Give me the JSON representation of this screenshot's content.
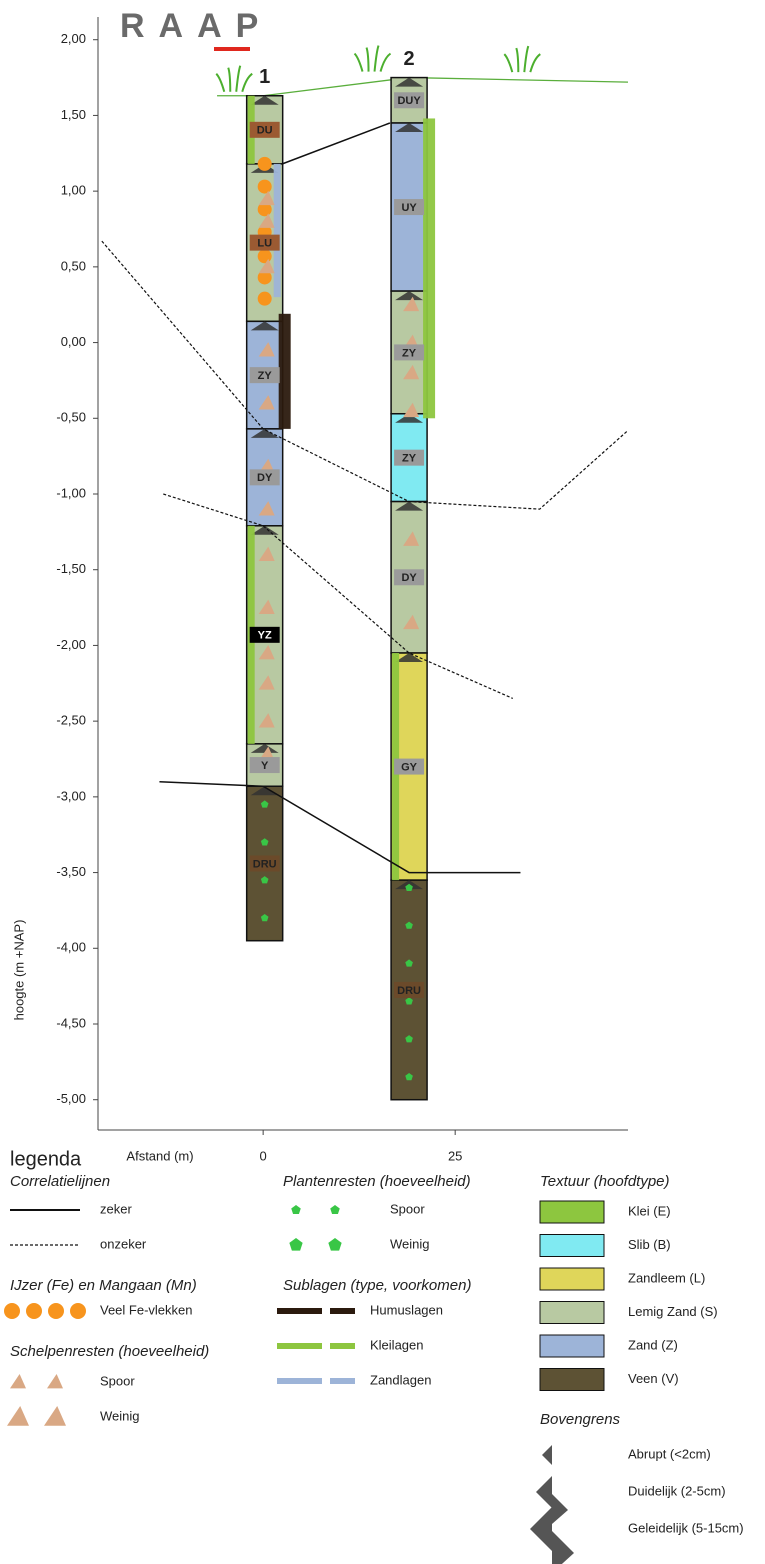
{
  "chart_data": {
    "type": "borehole",
    "logo": "RAAP",
    "ylabel": "hoogte (m +NAP)",
    "xlabel": "Afstand (m)",
    "xlim": [
      -21.5,
      47.5
    ],
    "ylim": [
      -5.2,
      2.15
    ],
    "xticks": [
      0,
      25
    ],
    "yticks": [
      {
        "value": 2,
        "label": "2,00"
      },
      {
        "value": 1.5,
        "label": "1,50"
      },
      {
        "value": 1,
        "label": "1,00"
      },
      {
        "value": 0.5,
        "label": "0,50"
      },
      {
        "value": 0,
        "label": "0,00"
      },
      {
        "value": -0.5,
        "label": "-0,50"
      },
      {
        "value": -1,
        "label": "-1,00"
      },
      {
        "value": -1.5,
        "label": "-1,50"
      },
      {
        "value": -2,
        "label": "-2,00"
      },
      {
        "value": -2.5,
        "label": "-2,50"
      },
      {
        "value": -3,
        "label": "-3,00"
      },
      {
        "value": -3.5,
        "label": "-3,50"
      },
      {
        "value": -4,
        "label": "-4,00"
      },
      {
        "value": -4.5,
        "label": "-4,50"
      },
      {
        "value": -5,
        "label": "-5,00"
      }
    ],
    "textures": [
      {
        "code": "E",
        "name": "Klei (E)",
        "color": "#8dc63f"
      },
      {
        "code": "B",
        "name": "Slib (B)",
        "color": "#80eaf2"
      },
      {
        "code": "L",
        "name": "Zandleem (L)",
        "color": "#dfd65a"
      },
      {
        "code": "S",
        "name": "Lemig Zand (S)",
        "color": "#b8c9a2"
      },
      {
        "code": "Z",
        "name": "Zand (Z)",
        "color": "#9db4d8"
      },
      {
        "code": "V",
        "name": "Veen (V)",
        "color": "#5d5234"
      }
    ],
    "surface": {
      "color": "#5aae3c",
      "x": [
        -6,
        0,
        19,
        47.5
      ],
      "y": [
        1.63,
        1.63,
        1.75,
        1.72
      ]
    },
    "boreholes": [
      {
        "name": "1",
        "x": 0.2,
        "layers": [
          {
            "top": 1.63,
            "bottom": 1.18,
            "texture": "S",
            "label": "DU",
            "label_bg": "#9b5a32"
          },
          {
            "top": 1.18,
            "bottom": 0.14,
            "texture": "S",
            "label": "LU",
            "label_bg": "#9b5a32"
          },
          {
            "top": 0.14,
            "bottom": -0.57,
            "texture": "Z",
            "label": "ZY",
            "label_bg": "#9a9a9a"
          },
          {
            "top": -0.57,
            "bottom": -1.21,
            "texture": "Z",
            "label": "DY",
            "label_bg": "#9a9a9a"
          },
          {
            "top": -1.21,
            "bottom": -2.65,
            "texture": "S",
            "label": "YZ",
            "label_bg": "#000000"
          },
          {
            "top": -2.65,
            "bottom": -2.93,
            "texture": "S",
            "label": "Y",
            "label_bg": "#9a9a9a"
          },
          {
            "top": -2.93,
            "bottom": -3.95,
            "texture": "V",
            "label": "DRU",
            "label_bg": "#6b4a2a"
          }
        ]
      },
      {
        "name": "2",
        "x": 19,
        "layers": [
          {
            "top": 1.75,
            "bottom": 1.45,
            "texture": "S",
            "label": "DUY",
            "label_bg": "#9a9a9a"
          },
          {
            "top": 1.45,
            "bottom": 0.34,
            "texture": "Z",
            "label": "UY",
            "label_bg": "#9a9a9a"
          },
          {
            "top": 0.34,
            "bottom": -0.47,
            "texture": "S",
            "label": "ZY",
            "label_bg": "#9a9a9a"
          },
          {
            "top": -0.47,
            "bottom": -1.05,
            "texture": "B",
            "label": "ZY",
            "label_bg": "#9a9a9a"
          },
          {
            "top": -1.05,
            "bottom": -2.05,
            "texture": "S",
            "label": "DY",
            "label_bg": "#9a9a9a"
          },
          {
            "top": -2.05,
            "bottom": -3.55,
            "texture": "L",
            "label": "GY",
            "label_bg": "#9a9a9a"
          },
          {
            "top": -3.55,
            "bottom": -5.0,
            "texture": "V",
            "label": "DRU",
            "label_bg": "#6b4a2a"
          }
        ]
      }
    ],
    "sublayers": [
      {
        "boring": 0,
        "kind": "klei",
        "side": "left",
        "top": 1.63,
        "bottom": 1.18
      },
      {
        "boring": 0,
        "kind": "zand",
        "side": "right",
        "top": 1.18,
        "bottom": 0.3
      },
      {
        "boring": 0,
        "kind": "humus",
        "side": "out",
        "top": 0.19,
        "bottom": -0.57
      },
      {
        "boring": 0,
        "kind": "klei",
        "side": "left",
        "top": -1.21,
        "bottom": -2.65
      },
      {
        "boring": 1,
        "kind": "klei",
        "side": "out",
        "top": 1.48,
        "bottom": -0.5
      },
      {
        "boring": 1,
        "kind": "klei",
        "side": "left",
        "top": -2.05,
        "bottom": -3.55
      }
    ],
    "features": [
      {
        "boring": 0,
        "kind": "fe",
        "depths": [
          1.18,
          1.03,
          0.88,
          0.73,
          0.57,
          0.43,
          0.29
        ]
      },
      {
        "boring": 0,
        "kind": "shell",
        "depths": [
          0.95,
          0.8,
          0.5,
          -0.05,
          -0.4,
          -0.82,
          -1.1,
          -1.4,
          -1.75,
          -2.05,
          -2.25,
          -2.5,
          -2.72
        ]
      },
      {
        "boring": 1,
        "kind": "shell",
        "depths": [
          0.25,
          0.0,
          -0.2,
          -0.45,
          -1.3,
          -1.55,
          -1.85
        ]
      },
      {
        "boring": 0,
        "kind": "plant",
        "depths": [
          -3.05,
          -3.3,
          -3.55,
          -3.8
        ]
      },
      {
        "boring": 1,
        "kind": "plant",
        "depths": [
          -3.6,
          -3.85,
          -4.1,
          -4.35,
          -4.6,
          -4.85
        ]
      }
    ],
    "correlations": [
      {
        "kind": "zeker",
        "x": [
          2.5,
          16.5
        ],
        "y": [
          1.18,
          1.45
        ]
      },
      {
        "kind": "zeker",
        "x": [
          -13.5,
          0,
          19,
          33.5
        ],
        "y": [
          -2.9,
          -2.93,
          -3.5,
          -3.5
        ]
      },
      {
        "kind": "onzeker",
        "x": [
          -21,
          0,
          19,
          36,
          47.5
        ],
        "y": [
          0.67,
          -0.57,
          -1.05,
          -1.1,
          -0.58
        ]
      },
      {
        "kind": "onzeker",
        "x": [
          -13,
          0,
          19,
          32.5
        ],
        "y": [
          -1.0,
          -1.21,
          -2.05,
          -2.35
        ]
      }
    ]
  },
  "legend": {
    "title": "legenda",
    "correlation": {
      "title": "Correlatielijnen",
      "items": [
        "zeker",
        "onzeker"
      ]
    },
    "iron": {
      "title": "IJzer (Fe) en Mangaan (Mn)",
      "items": [
        "Veel Fe-vlekken"
      ]
    },
    "shells": {
      "title": "Schelpenresten (hoeveelheid)",
      "items": [
        "Spoor",
        "Weinig"
      ]
    },
    "plants": {
      "title": "Plantenresten (hoeveelheid)",
      "items": [
        "Spoor",
        "Weinig"
      ]
    },
    "sublayers": {
      "title": "Sublagen (type, voorkomen)",
      "items": [
        "Humuslagen",
        "Kleilagen",
        "Zandlagen"
      ]
    },
    "texture": {
      "title": "Textuur (hoofdtype)"
    },
    "boundary": {
      "title": "Bovengrens",
      "items": [
        "Abrupt (<2cm)",
        "Duidelijk (2-5cm)",
        "Geleidelijk (5-15cm)"
      ]
    }
  }
}
